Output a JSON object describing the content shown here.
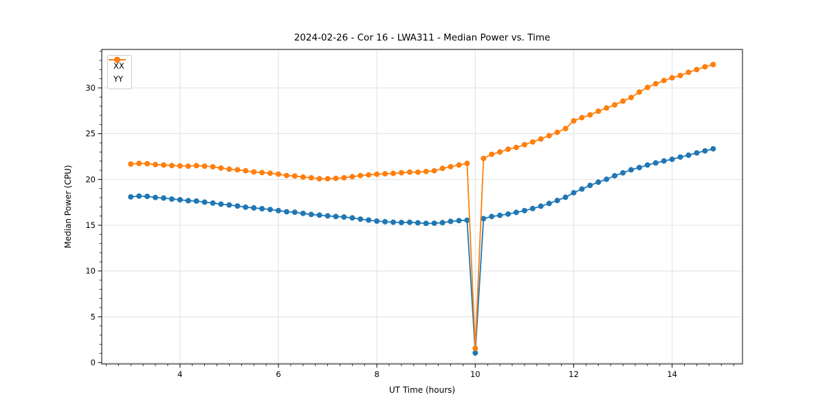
{
  "chart_data": {
    "type": "line",
    "title": "2024-02-26 - Cor 16 - LWA311 - Median Power vs. Time",
    "xlabel": "UT Time (hours)",
    "ylabel": "Median Power (CPU)",
    "xlim": [
      2.41,
      15.43
    ],
    "ylim": [
      -0.15,
      34.2
    ],
    "xticks": [
      4,
      6,
      8,
      10,
      12,
      14
    ],
    "yticks": [
      0,
      5,
      10,
      15,
      20,
      25,
      30
    ],
    "x_minor_step": 0.25,
    "y_minor_step": 1,
    "grid": true,
    "legend_position": "upper-left",
    "background_color": "#ffffff",
    "grid_color": "#e0e0e0",
    "x": [
      3.0,
      3.167,
      3.333,
      3.5,
      3.667,
      3.833,
      4.0,
      4.167,
      4.333,
      4.5,
      4.667,
      4.833,
      5.0,
      5.167,
      5.333,
      5.5,
      5.667,
      5.833,
      6.0,
      6.167,
      6.333,
      6.5,
      6.667,
      6.833,
      7.0,
      7.167,
      7.333,
      7.5,
      7.667,
      7.833,
      8.0,
      8.167,
      8.333,
      8.5,
      8.667,
      8.833,
      9.0,
      9.167,
      9.333,
      9.5,
      9.667,
      9.833,
      10.0,
      10.167,
      10.333,
      10.5,
      10.667,
      10.833,
      11.0,
      11.167,
      11.333,
      11.5,
      11.667,
      11.833,
      12.0,
      12.167,
      12.333,
      12.5,
      12.667,
      12.833,
      13.0,
      13.167,
      13.333,
      13.5,
      13.667,
      13.833,
      14.0,
      14.167,
      14.333,
      14.5,
      14.667,
      14.833
    ],
    "series": [
      {
        "name": "XX",
        "color": "#1f77b4",
        "marker": "circle",
        "values": [
          18.1,
          18.18,
          18.15,
          18.03,
          17.97,
          17.86,
          17.78,
          17.68,
          17.64,
          17.52,
          17.42,
          17.3,
          17.21,
          17.1,
          16.97,
          16.89,
          16.81,
          16.72,
          16.6,
          16.47,
          16.42,
          16.3,
          16.18,
          16.1,
          16.02,
          15.95,
          15.9,
          15.8,
          15.67,
          15.56,
          15.45,
          15.38,
          15.33,
          15.3,
          15.32,
          15.26,
          15.2,
          15.22,
          15.28,
          15.42,
          15.5,
          15.55,
          1.05,
          15.72,
          15.95,
          16.08,
          16.22,
          16.4,
          16.6,
          16.82,
          17.08,
          17.38,
          17.7,
          18.05,
          18.55,
          18.95,
          19.35,
          19.7,
          20.02,
          20.4,
          20.72,
          21.05,
          21.3,
          21.58,
          21.8,
          22.02,
          22.2,
          22.45,
          22.65,
          22.9,
          23.12,
          23.35
        ]
      },
      {
        "name": "YY",
        "color": "#ff7f0e",
        "marker": "circle",
        "values": [
          21.68,
          21.75,
          21.72,
          21.62,
          21.58,
          21.52,
          21.48,
          21.45,
          21.5,
          21.45,
          21.38,
          21.25,
          21.12,
          21.05,
          20.95,
          20.82,
          20.75,
          20.68,
          20.58,
          20.43,
          20.38,
          20.26,
          20.18,
          20.08,
          20.08,
          20.12,
          20.18,
          20.3,
          20.42,
          20.5,
          20.57,
          20.62,
          20.66,
          20.73,
          20.8,
          20.8,
          20.87,
          20.95,
          21.2,
          21.4,
          21.58,
          21.75,
          1.55,
          22.3,
          22.75,
          23.0,
          23.3,
          23.5,
          23.8,
          24.1,
          24.42,
          24.78,
          25.15,
          25.55,
          26.4,
          26.75,
          27.05,
          27.45,
          27.8,
          28.15,
          28.55,
          28.95,
          29.55,
          30.05,
          30.45,
          30.8,
          31.1,
          31.35,
          31.7,
          32.0,
          32.3,
          32.55
        ]
      }
    ]
  }
}
